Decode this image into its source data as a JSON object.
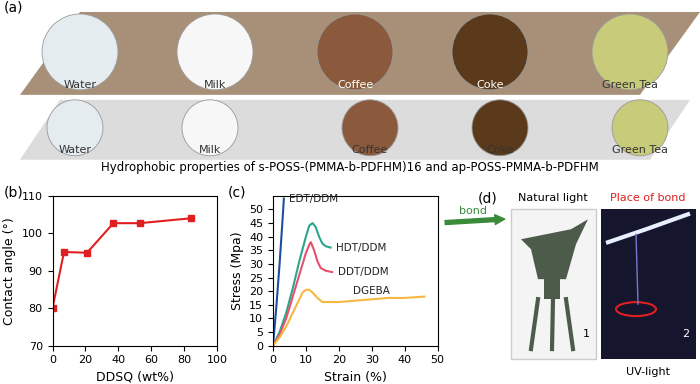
{
  "chart_data": [
    {
      "type": "line",
      "panel": "(b)",
      "x_label": "DDSQ (wt%)",
      "y_label": "Contact angle (°)",
      "x": [
        0,
        7,
        21,
        37,
        53,
        84
      ],
      "series": [
        {
          "color": "#e02020",
          "marker": "square",
          "line_style": "solid",
          "values": [
            80,
            95,
            94.8,
            102.7,
            102.7,
            104
          ]
        }
      ],
      "xlim": [
        0,
        100
      ],
      "xticks": [
        0,
        20,
        40,
        60,
        80,
        100
      ],
      "ylim": [
        70,
        110
      ],
      "yticks": [
        70,
        80,
        90,
        100,
        110
      ],
      "grid": false
    },
    {
      "type": "line",
      "panel": "(c)",
      "x_label": "Strain (%)",
      "y_label": "Stress (Mpa)",
      "series": [
        {
          "name": "EDT/DDM",
          "color": "#1f4e9c",
          "marker": "none",
          "line_style": "solid",
          "x": [
            0,
            0.5,
            1,
            1.5,
            2,
            2.5,
            3,
            3.3
          ],
          "values": [
            0,
            7,
            14,
            22,
            30,
            39,
            48,
            54
          ]
        },
        {
          "name": "HDT/DDM",
          "color": "#2ca58d",
          "marker": "none",
          "line_style": "solid",
          "x": [
            0,
            2,
            4,
            6,
            8,
            10,
            11,
            12,
            13,
            14,
            15,
            16,
            17.5
          ],
          "values": [
            0,
            5,
            12,
            21,
            31,
            40,
            44,
            45,
            43.5,
            40,
            37.5,
            36.5,
            36
          ]
        },
        {
          "name": "DDT/DDM",
          "color": "#e8506e",
          "marker": "none",
          "line_style": "solid",
          "x": [
            0,
            2,
            4,
            6,
            8,
            10,
            11,
            11.5,
            12.5,
            13.5,
            14.5,
            16,
            18
          ],
          "values": [
            0,
            4,
            10,
            18,
            26,
            34,
            37,
            38,
            35,
            31,
            28.5,
            27.5,
            27
          ]
        },
        {
          "name": "DGEBA",
          "color": "#f5b841",
          "marker": "none",
          "line_style": "solid",
          "x": [
            0,
            2,
            4,
            6,
            8,
            9,
            10,
            11,
            12,
            13.5,
            15,
            20,
            25,
            30,
            35,
            40,
            46
          ],
          "values": [
            0,
            3,
            7,
            12,
            17,
            19.5,
            20.5,
            20.5,
            19.5,
            17.5,
            16,
            16,
            16.5,
            17,
            17.5,
            17.5,
            18
          ]
        }
      ],
      "xlim": [
        0,
        50
      ],
      "xticks": [
        0,
        10,
        20,
        30,
        40,
        50
      ],
      "ylim": [
        0,
        55
      ],
      "yticks": [
        0,
        5,
        10,
        15,
        20,
        25,
        30,
        35,
        40,
        45,
        50
      ],
      "grid": false
    }
  ],
  "panel_a": {
    "label": "(a)",
    "rows": [
      [
        "Water",
        "Milk",
        "Coffee",
        "Coke",
        "Green Tea"
      ],
      [
        "Water",
        "Milk",
        "Coffee",
        "Coke",
        "Green Tea"
      ]
    ],
    "caption": "Hydrophobic properties of s-POSS-(PMMA-b-PDFHM)16 and ap-POSS-PMMA-b-PDFHM"
  },
  "panel_d": {
    "label": "(d)",
    "top_left": "Natural light",
    "top_right": "Place of bond",
    "bottom_right": "UV-light",
    "photo_numbers": [
      "1",
      "2"
    ],
    "arrow_label": "bond"
  }
}
